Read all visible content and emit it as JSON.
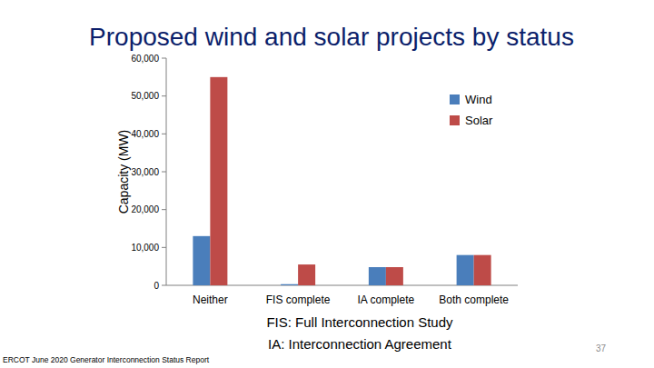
{
  "chart_data": {
    "type": "bar",
    "title": "Proposed wind and solar projects by status",
    "y_label": "Capacity (MW)",
    "categories": [
      "Neither",
      "FIS complete",
      "IA complete",
      "Both complete"
    ],
    "series": [
      {
        "name": "Wind",
        "color": "#4a7ebb",
        "values": [
          13000,
          300,
          4800,
          8000
        ]
      },
      {
        "name": "Solar",
        "color": "#be4b48",
        "values": [
          55000,
          5500,
          4800,
          8000
        ]
      }
    ],
    "ylim": [
      0,
      60000
    ],
    "yticks": [
      0,
      {
        "value": 10000,
        "label": "10,000"
      },
      {
        "value": 20000,
        "label": "20,000"
      },
      {
        "value": 30000,
        "label": "30,000"
      },
      {
        "value": 40000,
        "label": "40,000"
      },
      {
        "value": 50000,
        "label": "50,000"
      },
      {
        "value": 60000,
        "label": "60,000"
      }
    ],
    "grid": false,
    "legend": "upper right",
    "annotations": [
      "FIS: Full Interconnection Study",
      "IA: Interconnection Agreement"
    ]
  },
  "source": "ERCOT June 2020 Generator Interconnection Status Report",
  "page_number": 37
}
